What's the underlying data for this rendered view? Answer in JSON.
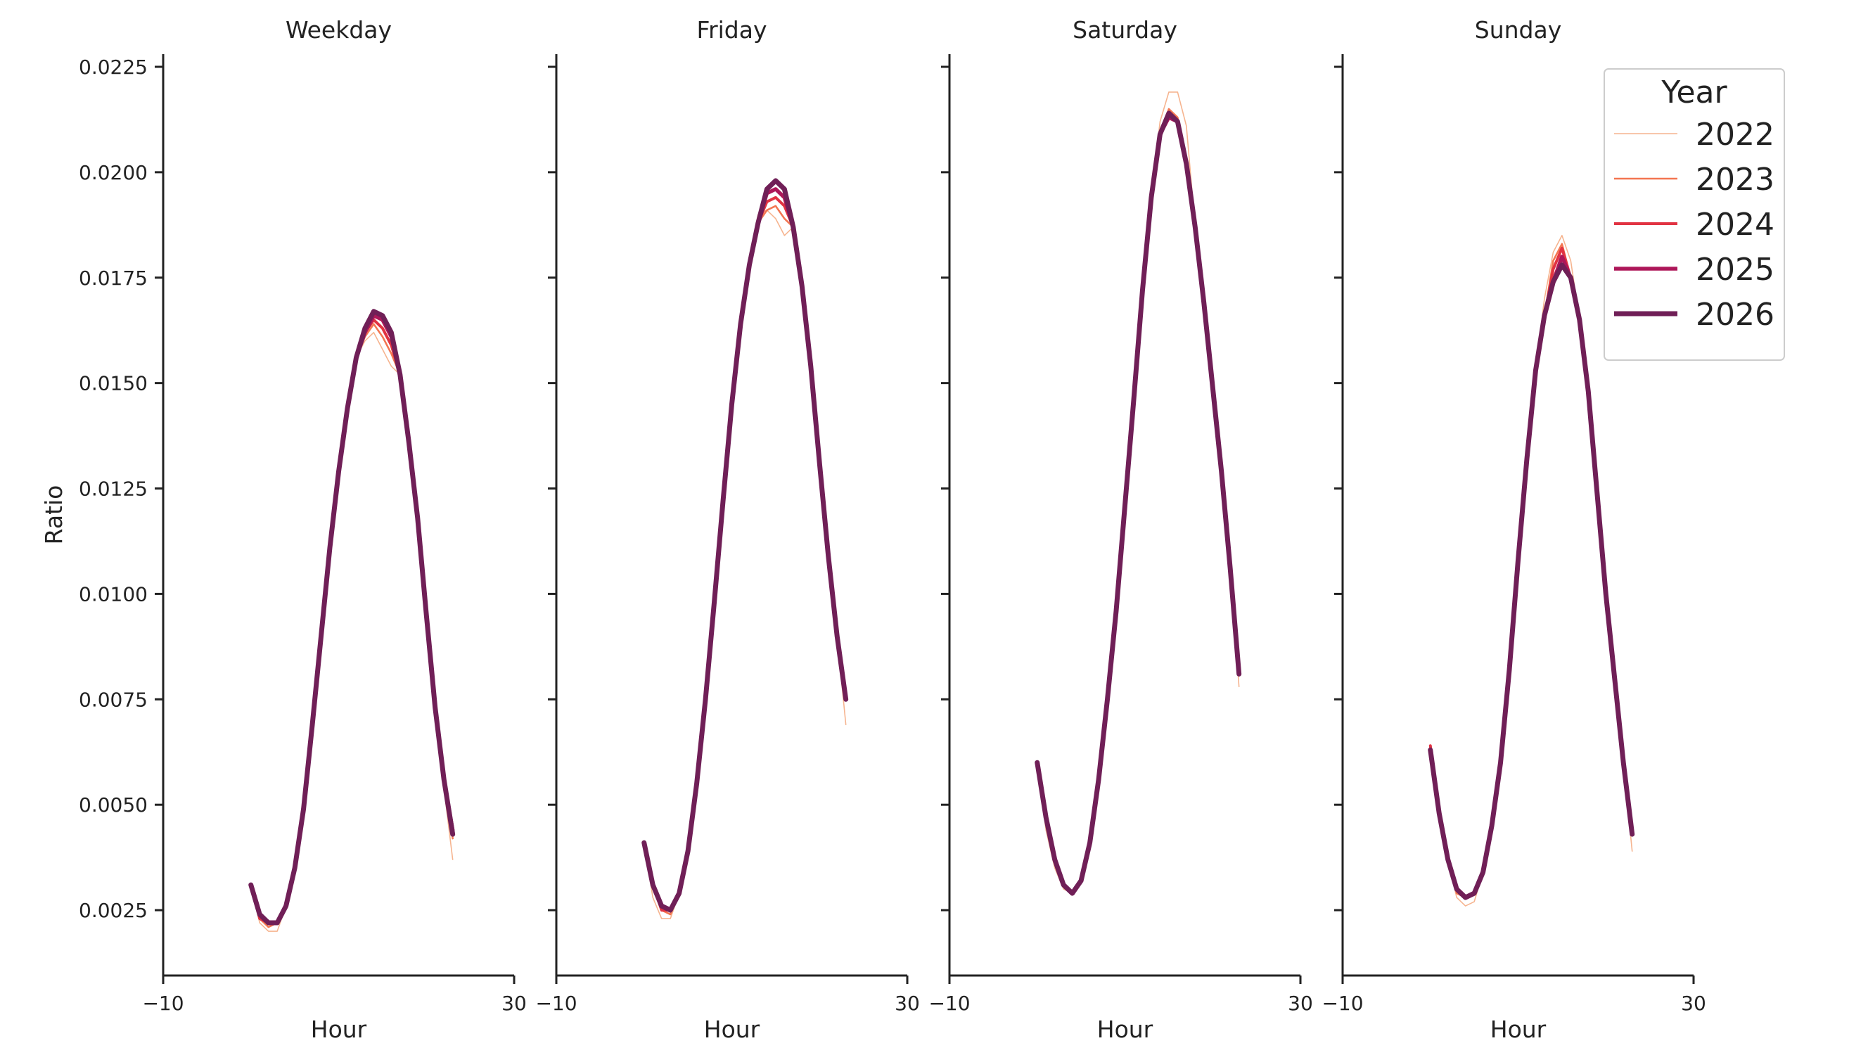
{
  "chart_data": [
    {
      "type": "line",
      "title": "Weekday",
      "x_label": "Hour",
      "y_label": "Ratio",
      "x": [
        0,
        1,
        2,
        3,
        4,
        5,
        6,
        7,
        8,
        9,
        10,
        11,
        12,
        13,
        14,
        15,
        16,
        17,
        18,
        19,
        20,
        21,
        22,
        23
      ],
      "xlim": [
        -10,
        30
      ],
      "xticks": [
        {
          "value": -10,
          "label": "−10"
        },
        30
      ],
      "ylim": [
        0.00095,
        0.0228
      ],
      "yticks": [
        0.0025,
        {
          "value": 0.005,
          "label": "0.0050"
        },
        0.0075,
        {
          "value": 0.01,
          "label": "0.0100"
        },
        0.0125,
        {
          "value": 0.015,
          "label": "0.0150"
        },
        0.0175,
        {
          "value": 0.02,
          "label": "0.0200"
        },
        0.0225
      ],
      "series": [
        {
          "name": "2022",
          "color": "#f6b48f",
          "values": [
            0.0031,
            0.0022,
            0.002,
            0.002,
            0.0026,
            0.0035,
            0.0049,
            0.0069,
            0.009,
            0.0111,
            0.0129,
            0.0144,
            0.0156,
            0.016,
            0.0162,
            0.0158,
            0.0154,
            0.0152,
            0.0136,
            0.0118,
            0.0095,
            0.0073,
            0.0054,
            0.0037
          ]
        },
        {
          "name": "2023",
          "color": "#f37651",
          "values": [
            0.0031,
            0.0023,
            0.0021,
            0.0022,
            0.0026,
            0.0035,
            0.0049,
            0.0069,
            0.009,
            0.0111,
            0.0129,
            0.0144,
            0.0156,
            0.0161,
            0.0164,
            0.0161,
            0.0157,
            0.0152,
            0.0136,
            0.0118,
            0.0095,
            0.0073,
            0.0056,
            0.0042
          ]
        },
        {
          "name": "2024",
          "color": "#e13342",
          "values": [
            0.0031,
            0.0023,
            0.0022,
            0.0022,
            0.0026,
            0.0035,
            0.0049,
            0.0069,
            0.009,
            0.0111,
            0.0129,
            0.0144,
            0.0156,
            0.0162,
            0.0165,
            0.0163,
            0.0159,
            0.0152,
            0.0136,
            0.0118,
            0.0095,
            0.0073,
            0.0056,
            0.0043
          ]
        },
        {
          "name": "2025",
          "color": "#ad1759",
          "values": [
            0.0031,
            0.0024,
            0.0022,
            0.0022,
            0.0026,
            0.0035,
            0.0049,
            0.0069,
            0.009,
            0.0111,
            0.0129,
            0.0144,
            0.0156,
            0.0162,
            0.0166,
            0.0165,
            0.0161,
            0.0152,
            0.0136,
            0.0118,
            0.0095,
            0.0073,
            0.0056,
            0.0044
          ]
        },
        {
          "name": "2026",
          "color": "#701f57",
          "values": [
            0.0031,
            0.0024,
            0.0022,
            0.0022,
            0.0026,
            0.0035,
            0.0049,
            0.0069,
            0.009,
            0.0111,
            0.0129,
            0.0144,
            0.0156,
            0.0163,
            0.0167,
            0.0166,
            0.0162,
            0.0152,
            0.0136,
            0.0118,
            0.0095,
            0.0073,
            0.0056,
            0.0043
          ]
        }
      ]
    },
    {
      "type": "line",
      "title": "Friday",
      "x_label": "Hour",
      "x": [
        0,
        1,
        2,
        3,
        4,
        5,
        6,
        7,
        8,
        9,
        10,
        11,
        12,
        13,
        14,
        15,
        16,
        17,
        18,
        19,
        20,
        21,
        22,
        23
      ],
      "xlim": [
        -10,
        30
      ],
      "xticks": [
        {
          "value": -10,
          "label": "−10"
        },
        30
      ],
      "series": [
        {
          "name": "2022",
          "color": "#f6b48f",
          "values": [
            0.0041,
            0.0028,
            0.0023,
            0.0023,
            0.0029,
            0.0039,
            0.0055,
            0.0075,
            0.0098,
            0.0122,
            0.0145,
            0.0167,
            0.018,
            0.019,
            0.0191,
            0.0189,
            0.0185,
            0.0187,
            0.0173,
            0.0154,
            0.0131,
            0.0109,
            0.009,
            0.0069
          ]
        },
        {
          "name": "2023",
          "color": "#f37651",
          "values": [
            0.0041,
            0.0031,
            0.0025,
            0.0024,
            0.0029,
            0.0039,
            0.0055,
            0.0075,
            0.0098,
            0.0122,
            0.0145,
            0.0164,
            0.0178,
            0.0188,
            0.0191,
            0.0192,
            0.0189,
            0.0187,
            0.0173,
            0.0154,
            0.0131,
            0.0109,
            0.009,
            0.0075
          ]
        },
        {
          "name": "2024",
          "color": "#e13342",
          "values": [
            0.0041,
            0.0031,
            0.0025,
            0.0025,
            0.0029,
            0.0039,
            0.0055,
            0.0075,
            0.0098,
            0.0122,
            0.0145,
            0.0164,
            0.0178,
            0.0188,
            0.0193,
            0.0194,
            0.0192,
            0.0187,
            0.0173,
            0.0154,
            0.0131,
            0.0109,
            0.009,
            0.0075
          ]
        },
        {
          "name": "2025",
          "color": "#ad1759",
          "values": [
            0.0041,
            0.0031,
            0.0026,
            0.0025,
            0.0029,
            0.0039,
            0.0055,
            0.0075,
            0.0098,
            0.0122,
            0.0145,
            0.0164,
            0.0178,
            0.0188,
            0.0195,
            0.0196,
            0.0194,
            0.0187,
            0.0173,
            0.0154,
            0.0131,
            0.0109,
            0.009,
            0.0075
          ]
        },
        {
          "name": "2026",
          "color": "#701f57",
          "values": [
            0.0041,
            0.0031,
            0.0026,
            0.0025,
            0.0029,
            0.0039,
            0.0055,
            0.0075,
            0.0098,
            0.0122,
            0.0145,
            0.0164,
            0.0178,
            0.0188,
            0.0196,
            0.0198,
            0.0196,
            0.0187,
            0.0173,
            0.0154,
            0.0131,
            0.0109,
            0.009,
            0.0075
          ]
        }
      ]
    },
    {
      "type": "line",
      "title": "Saturday",
      "x_label": "Hour",
      "x": [
        0,
        1,
        2,
        3,
        4,
        5,
        6,
        7,
        8,
        9,
        10,
        11,
        12,
        13,
        14,
        15,
        16,
        17,
        18,
        19,
        20,
        21,
        22,
        23
      ],
      "xlim": [
        -10,
        30
      ],
      "xticks": [
        {
          "value": -10,
          "label": "−10"
        },
        30
      ],
      "series": [
        {
          "name": "2022",
          "color": "#f6b48f",
          "values": [
            0.006,
            0.0044,
            0.0035,
            0.003,
            0.0029,
            0.0032,
            0.0041,
            0.0056,
            0.0075,
            0.0096,
            0.0121,
            0.0146,
            0.0172,
            0.0194,
            0.0212,
            0.0219,
            0.0219,
            0.0211,
            0.0187,
            0.0169,
            0.0149,
            0.0129,
            0.0106,
            0.0078
          ]
        },
        {
          "name": "2023",
          "color": "#f37651",
          "values": [
            0.006,
            0.0047,
            0.0036,
            0.0031,
            0.0029,
            0.0032,
            0.0041,
            0.0056,
            0.0075,
            0.0096,
            0.0121,
            0.0146,
            0.0172,
            0.0194,
            0.0209,
            0.0215,
            0.0213,
            0.0202,
            0.0187,
            0.0169,
            0.0149,
            0.0129,
            0.0106,
            0.0081
          ]
        },
        {
          "name": "2024",
          "color": "#e13342",
          "values": [
            0.006,
            0.0047,
            0.0037,
            0.0031,
            0.0029,
            0.0032,
            0.0041,
            0.0056,
            0.0075,
            0.0096,
            0.0121,
            0.0146,
            0.0172,
            0.0194,
            0.0209,
            0.0214,
            0.0212,
            0.0202,
            0.0187,
            0.0169,
            0.0149,
            0.0129,
            0.0106,
            0.0081
          ]
        },
        {
          "name": "2025",
          "color": "#ad1759",
          "values": [
            0.006,
            0.0047,
            0.0037,
            0.0031,
            0.0029,
            0.0032,
            0.0041,
            0.0056,
            0.0075,
            0.0096,
            0.0121,
            0.0146,
            0.0172,
            0.0194,
            0.0209,
            0.0213,
            0.0212,
            0.0202,
            0.0187,
            0.0169,
            0.0149,
            0.0129,
            0.0106,
            0.0081
          ]
        },
        {
          "name": "2026",
          "color": "#701f57",
          "values": [
            0.006,
            0.0047,
            0.0037,
            0.0031,
            0.0029,
            0.0032,
            0.0041,
            0.0056,
            0.0075,
            0.0096,
            0.0121,
            0.0146,
            0.0172,
            0.0194,
            0.0209,
            0.0214,
            0.0212,
            0.0202,
            0.0187,
            0.0169,
            0.0149,
            0.0129,
            0.0106,
            0.0081
          ]
        }
      ]
    },
    {
      "type": "line",
      "title": "Sunday",
      "x_label": "Hour",
      "x": [
        0,
        1,
        2,
        3,
        4,
        5,
        6,
        7,
        8,
        9,
        10,
        11,
        12,
        13,
        14,
        15,
        16,
        17,
        18,
        19,
        20,
        21,
        22,
        23
      ],
      "xlim": [
        -10,
        30
      ],
      "xticks": [
        {
          "value": -10,
          "label": "−10"
        },
        30
      ],
      "legend_title": "Year",
      "legend": "upper right",
      "series": [
        {
          "name": "2022",
          "color": "#f6b48f",
          "values": [
            0.0063,
            0.0048,
            0.0037,
            0.0028,
            0.0026,
            0.0027,
            0.0034,
            0.0045,
            0.006,
            0.0082,
            0.0108,
            0.0132,
            0.0153,
            0.017,
            0.0181,
            0.0185,
            0.0179,
            0.0165,
            0.0148,
            0.0124,
            0.01,
            0.008,
            0.006,
            0.0039
          ]
        },
        {
          "name": "2023",
          "color": "#f37651",
          "values": [
            0.0063,
            0.0048,
            0.0037,
            0.0029,
            0.0028,
            0.0029,
            0.0034,
            0.0045,
            0.006,
            0.0082,
            0.0108,
            0.0132,
            0.0153,
            0.0166,
            0.0179,
            0.0183,
            0.0175,
            0.0165,
            0.0148,
            0.0124,
            0.01,
            0.008,
            0.006,
            0.0043
          ]
        },
        {
          "name": "2024",
          "color": "#e13342",
          "values": [
            0.0064,
            0.0048,
            0.0037,
            0.003,
            0.0028,
            0.0029,
            0.0034,
            0.0045,
            0.006,
            0.0082,
            0.0108,
            0.0132,
            0.0153,
            0.0166,
            0.0177,
            0.0182,
            0.0175,
            0.0165,
            0.0148,
            0.0124,
            0.01,
            0.008,
            0.006,
            0.0043
          ]
        },
        {
          "name": "2025",
          "color": "#ad1759",
          "values": [
            0.0063,
            0.0048,
            0.0037,
            0.003,
            0.0028,
            0.0029,
            0.0034,
            0.0045,
            0.006,
            0.0082,
            0.0108,
            0.0132,
            0.0153,
            0.0166,
            0.0174,
            0.018,
            0.0175,
            0.0165,
            0.0148,
            0.0124,
            0.01,
            0.008,
            0.006,
            0.0043
          ]
        },
        {
          "name": "2026",
          "color": "#701f57",
          "values": [
            0.0063,
            0.0048,
            0.0037,
            0.003,
            0.0028,
            0.0029,
            0.0034,
            0.0045,
            0.006,
            0.0082,
            0.0108,
            0.0132,
            0.0153,
            0.0166,
            0.0174,
            0.0178,
            0.0175,
            0.0165,
            0.0148,
            0.0124,
            0.01,
            0.008,
            0.006,
            0.0043
          ]
        }
      ]
    }
  ]
}
